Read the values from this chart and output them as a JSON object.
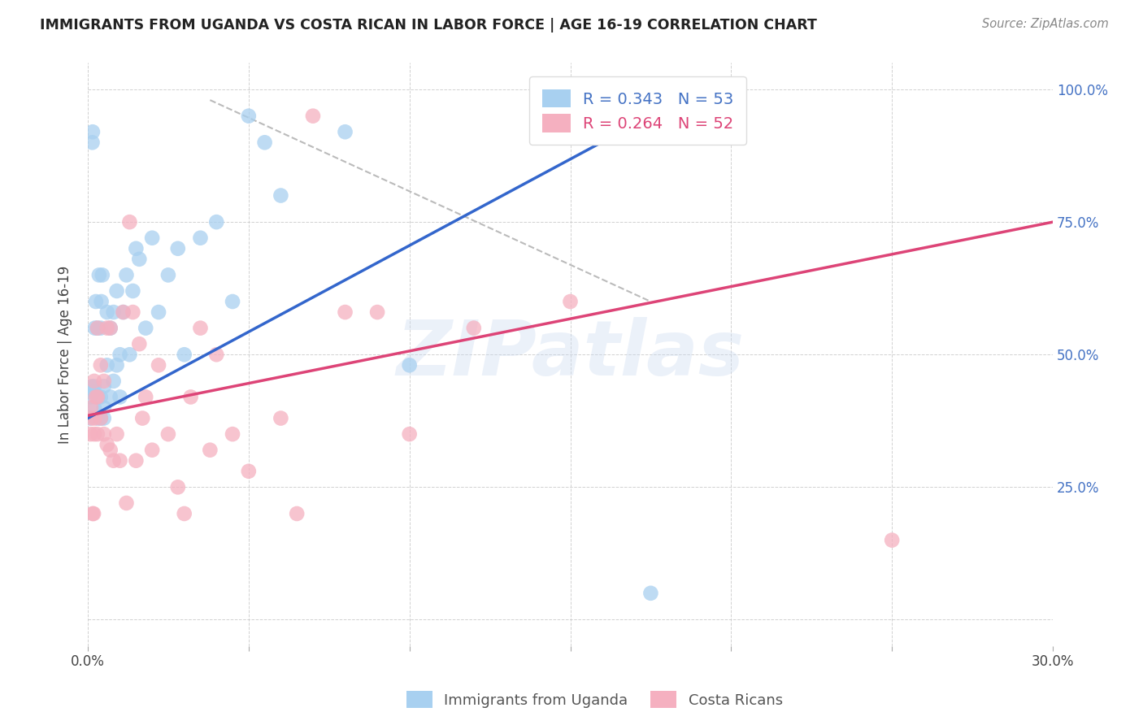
{
  "title": "IMMIGRANTS FROM UGANDA VS COSTA RICAN IN LABOR FORCE | AGE 16-19 CORRELATION CHART",
  "source": "Source: ZipAtlas.com",
  "ylabel": "In Labor Force | Age 16-19",
  "xlim": [
    0.0,
    0.3
  ],
  "ylim": [
    -0.05,
    1.05
  ],
  "uganda_color": "#A8D0F0",
  "costa_color": "#F5B0C0",
  "uganda_line_color": "#3366CC",
  "costa_line_color": "#DD4477",
  "background_color": "#ffffff",
  "watermark": "ZIPatlas",
  "uganda_x": [
    0.0008,
    0.0008,
    0.0012,
    0.0014,
    0.0015,
    0.0018,
    0.002,
    0.002,
    0.0022,
    0.0025,
    0.003,
    0.003,
    0.0032,
    0.0035,
    0.004,
    0.004,
    0.004,
    0.0042,
    0.0045,
    0.005,
    0.005,
    0.005,
    0.006,
    0.006,
    0.007,
    0.007,
    0.008,
    0.008,
    0.009,
    0.009,
    0.01,
    0.01,
    0.011,
    0.012,
    0.013,
    0.014,
    0.015,
    0.016,
    0.018,
    0.02,
    0.022,
    0.025,
    0.028,
    0.03,
    0.035,
    0.04,
    0.045,
    0.05,
    0.055,
    0.06,
    0.08,
    0.1,
    0.175
  ],
  "uganda_y": [
    0.38,
    0.42,
    0.44,
    0.9,
    0.92,
    0.43,
    0.4,
    0.44,
    0.55,
    0.6,
    0.38,
    0.55,
    0.42,
    0.65,
    0.38,
    0.42,
    0.55,
    0.6,
    0.65,
    0.38,
    0.4,
    0.44,
    0.48,
    0.58,
    0.42,
    0.55,
    0.45,
    0.58,
    0.48,
    0.62,
    0.42,
    0.5,
    0.58,
    0.65,
    0.5,
    0.62,
    0.7,
    0.68,
    0.55,
    0.72,
    0.58,
    0.65,
    0.7,
    0.5,
    0.72,
    0.75,
    0.6,
    0.95,
    0.9,
    0.8,
    0.92,
    0.48,
    0.05
  ],
  "costa_x": [
    0.0008,
    0.001,
    0.0012,
    0.0015,
    0.0018,
    0.002,
    0.002,
    0.0022,
    0.0025,
    0.003,
    0.003,
    0.003,
    0.004,
    0.004,
    0.005,
    0.005,
    0.006,
    0.006,
    0.007,
    0.007,
    0.008,
    0.009,
    0.01,
    0.011,
    0.012,
    0.013,
    0.014,
    0.015,
    0.016,
    0.017,
    0.018,
    0.02,
    0.022,
    0.025,
    0.028,
    0.03,
    0.032,
    0.035,
    0.038,
    0.04,
    0.045,
    0.05,
    0.06,
    0.065,
    0.07,
    0.08,
    0.09,
    0.1,
    0.12,
    0.15,
    0.2,
    0.25
  ],
  "costa_y": [
    0.35,
    0.4,
    0.38,
    0.2,
    0.2,
    0.35,
    0.45,
    0.38,
    0.42,
    0.35,
    0.42,
    0.55,
    0.38,
    0.48,
    0.35,
    0.45,
    0.33,
    0.55,
    0.32,
    0.55,
    0.3,
    0.35,
    0.3,
    0.58,
    0.22,
    0.75,
    0.58,
    0.3,
    0.52,
    0.38,
    0.42,
    0.32,
    0.48,
    0.35,
    0.25,
    0.2,
    0.42,
    0.55,
    0.32,
    0.5,
    0.35,
    0.28,
    0.38,
    0.2,
    0.95,
    0.58,
    0.58,
    0.35,
    0.55,
    0.6,
    0.95,
    0.15
  ],
  "dashed_line_x": [
    0.038,
    0.175
  ],
  "dashed_line_y": [
    0.98,
    0.6
  ],
  "uganda_regression_x0": 0.0,
  "uganda_regression_y0": 0.38,
  "uganda_regression_x1": 0.175,
  "uganda_regression_y1": 0.95,
  "costa_regression_x0": 0.0,
  "costa_regression_y0": 0.385,
  "costa_regression_x1": 0.3,
  "costa_regression_y1": 0.75
}
